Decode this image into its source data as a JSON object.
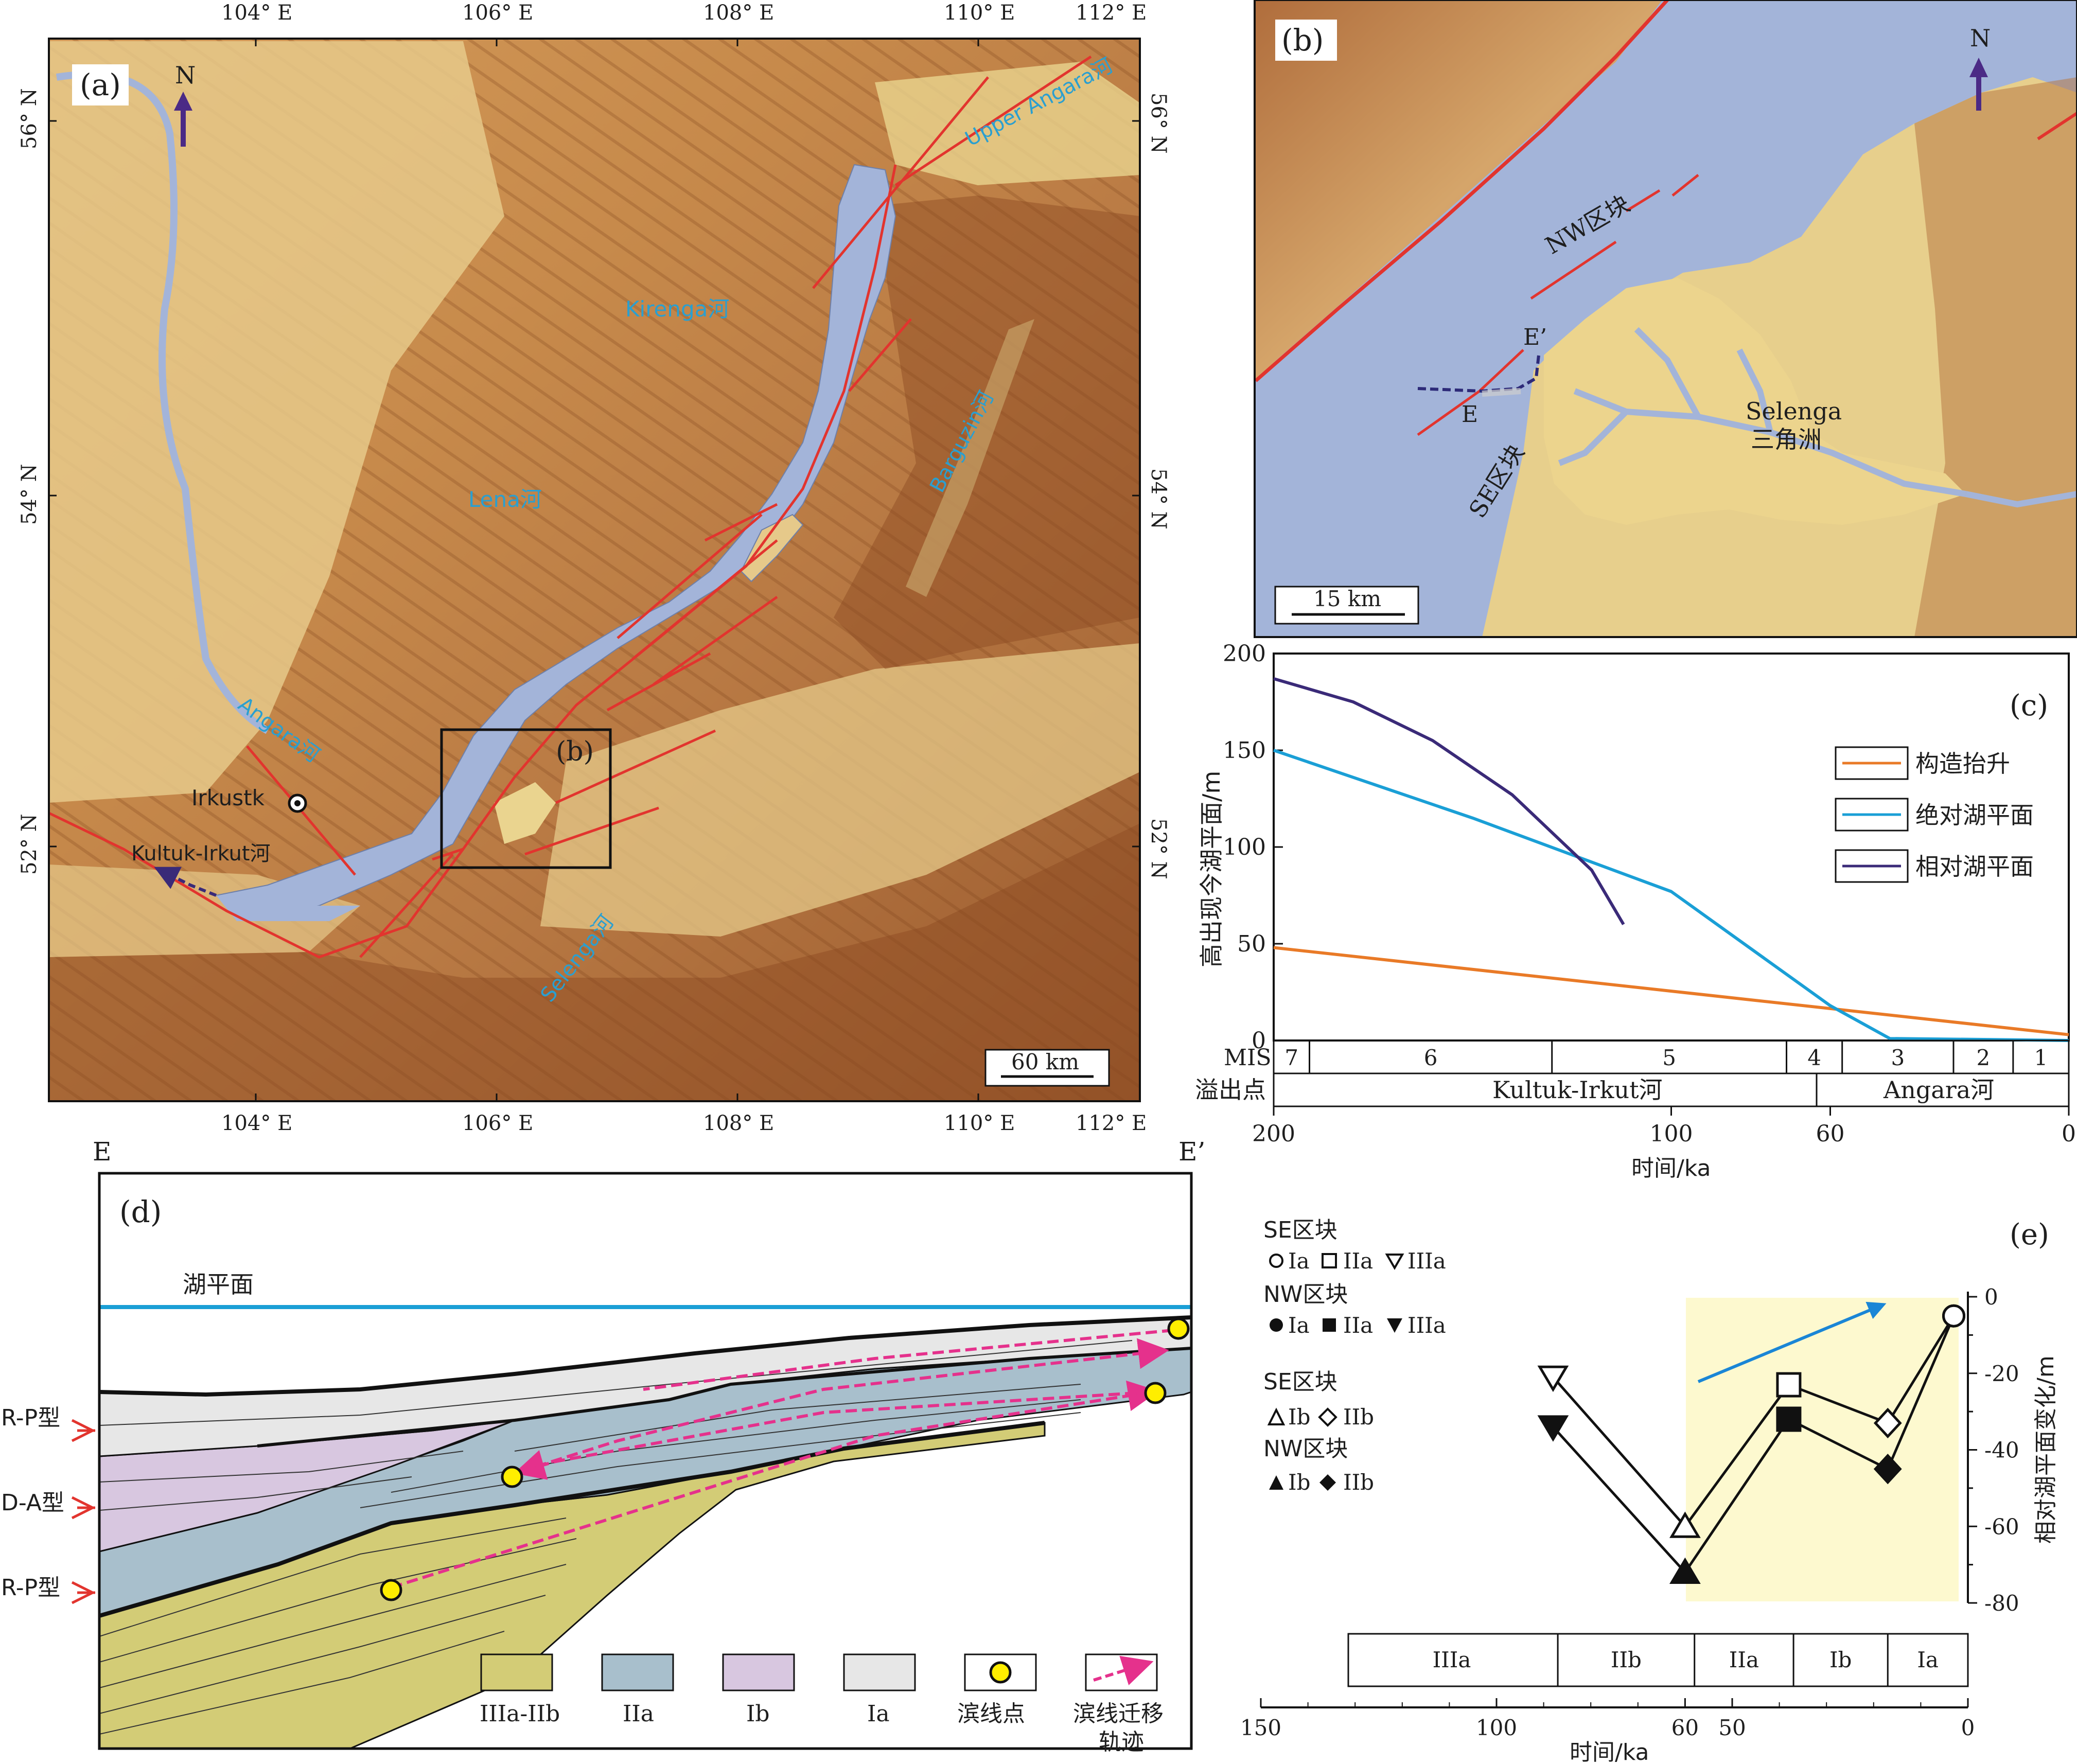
{
  "colors": {
    "lake": "#a3b4d9",
    "lowland": "#ecd48d",
    "fault": "#e2342e",
    "river_label": "#2a9fd0",
    "north_arrow": "#4b2a86",
    "uplift_line": "#e97a27",
    "absolute_line": "#1a9fd6",
    "relative_line": "#3a2a78",
    "unit_IIIa_IIb": "#d3cc76",
    "unit_IIa": "#a8bfcc",
    "unit_Ib": "#d8c7e0",
    "unit_Ia": "#e7e7e7",
    "shoreline_point": "#ffee00",
    "migration": "#e5318c",
    "highlight_box": "#fdf9cf",
    "accent_60": "#d23a7b"
  },
  "panel_a": {
    "label": "(a)",
    "lon_labels": [
      "104° E",
      "106° E",
      "108° E",
      "110° E",
      "112° E"
    ],
    "lat_labels": [
      "56° N",
      "54° N",
      "52° N"
    ],
    "north": "N",
    "scale": "60 km",
    "inset_label": "(b)",
    "rivers": {
      "upper_angara": "Upper Angara河",
      "kirenga": "Kirenga河",
      "barguzin": "Barguzin河",
      "lena": "Lena河",
      "angara": "Angara河",
      "selenga": "Selenga河"
    },
    "irkutsk": "Irkustk",
    "kultuk": "Kultuk-Irkut河"
  },
  "panel_b": {
    "label": "(b)",
    "north": "N",
    "nw_block": "NW区块",
    "se_block": "SE区块",
    "e_mark": "E",
    "e2_mark": "E’",
    "delta_name_1": "Selenga",
    "delta_name_2": "三角洲",
    "scale": "15 km"
  },
  "panel_c": {
    "label": "(c)",
    "ylabel": "高出现今湖平面/m",
    "xlabel": "时间/ka",
    "y_ticks": [
      "0",
      "50",
      "100",
      "150",
      "200"
    ],
    "x_ticks": [
      "200",
      "100",
      "60",
      "0"
    ],
    "mis_label": "MIS",
    "mis_stages": [
      "7",
      "6",
      "5",
      "4",
      "3",
      "2",
      "1"
    ],
    "outlet_label": "溢出点",
    "outlets": [
      "Kultuk-Irkut河",
      "Angara河"
    ],
    "legend": [
      "构造抬升",
      "绝对湖平面",
      "相对湖平面"
    ]
  },
  "chart_data": {
    "type": "line",
    "xlabel": "时间/ka",
    "ylabel": "高出现今湖平面/m",
    "xlim": [
      200,
      0
    ],
    "ylim": [
      0,
      200
    ],
    "series": [
      {
        "name": "构造抬升",
        "x": [
          200,
          0
        ],
        "y": [
          48,
          3
        ]
      },
      {
        "name": "绝对湖平面",
        "x": [
          200,
          150,
          100,
          60,
          45,
          20,
          0
        ],
        "y": [
          150,
          115,
          77,
          18,
          1,
          0.5,
          0
        ]
      },
      {
        "name": "相对湖平面",
        "x": [
          200,
          180,
          160,
          140,
          120,
          112
        ],
        "y": [
          187,
          175,
          155,
          127,
          88,
          60
        ]
      }
    ]
  },
  "panel_d": {
    "label": "(d)",
    "e_label": "E",
    "e2_label": "E’",
    "lake_level": "湖平面",
    "types": [
      "R-P型",
      "D-A型",
      "R-P型"
    ],
    "legend": [
      "IIIa-IIb",
      "IIa",
      "Ib",
      "Ia",
      "滨线点",
      "滨线迁移",
      "轨迹"
    ]
  },
  "panel_e": {
    "label": "(e)",
    "groups": [
      {
        "title": "SE区块",
        "items": [
          "Ia",
          "IIa",
          "IIIa"
        ]
      },
      {
        "title": "NW区块",
        "items": [
          "Ia",
          "IIa",
          "IIIa"
        ]
      },
      {
        "title": "SE区块",
        "items": [
          "Ib",
          "IIb"
        ]
      },
      {
        "title": "NW区块",
        "items": [
          "Ib",
          "IIb"
        ]
      }
    ],
    "ylabel": "相对湖平面变化/m",
    "y_ticks": [
      "0",
      "-20",
      "-40",
      "-60",
      "-80"
    ],
    "xlabel": "时间/ka",
    "x_ticks": [
      "150",
      "100",
      "60",
      "50",
      "0"
    ],
    "units": [
      "IIIa",
      "IIb",
      "IIa",
      "Ib",
      "Ia"
    ],
    "se_points": [
      {
        "unit": "IIIa",
        "t": 88,
        "y": -21
      },
      {
        "unit": "Ib",
        "t": 60,
        "y": -60
      },
      {
        "unit": "IIa",
        "t": 38,
        "y": -23
      },
      {
        "unit": "IIb",
        "t": 17,
        "y": -33
      },
      {
        "unit": "Ia",
        "t": 3,
        "y": -5
      }
    ],
    "nw_points": [
      {
        "unit": "IIIa",
        "t": 88,
        "y": -34
      },
      {
        "unit": "Ib",
        "t": 60,
        "y": -72
      },
      {
        "unit": "IIa",
        "t": 38,
        "y": -32
      },
      {
        "unit": "IIb",
        "t": 17,
        "y": -45
      },
      {
        "unit": "Ia",
        "t": 3,
        "y": -5
      }
    ]
  }
}
